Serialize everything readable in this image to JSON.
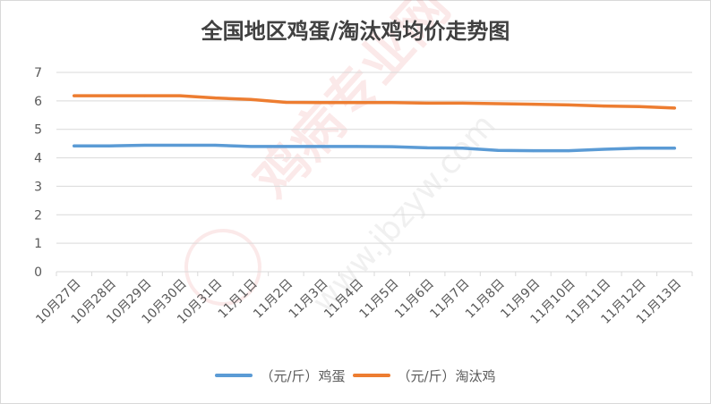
{
  "chart_data": {
    "type": "line",
    "title": "全国地区鸡蛋/淘汰鸡均价走势图",
    "xlabel": "",
    "ylabel": "",
    "ylim": [
      0,
      7
    ],
    "yticks": [
      "0",
      "1",
      "2",
      "3",
      "4",
      "5",
      "6",
      "7"
    ],
    "grid": true,
    "legend_position": "bottom",
    "categories": [
      "10月27日",
      "10月28日",
      "10月29日",
      "10月30日",
      "10月31日",
      "11月1日",
      "11月2日",
      "11月3日",
      "11月4日",
      "11月5日",
      "11月6日",
      "11月7日",
      "11月8日",
      "11月9日",
      "11月10日",
      "11月11日",
      "11月12日",
      "11月13日"
    ],
    "series": [
      {
        "name": "（元/斤）鸡蛋",
        "color": "#5b9bd5",
        "values": [
          4.42,
          4.42,
          4.44,
          4.44,
          4.44,
          4.4,
          4.4,
          4.4,
          4.4,
          4.39,
          4.35,
          4.34,
          4.26,
          4.25,
          4.25,
          4.3,
          4.34,
          4.34
        ]
      },
      {
        "name": "（元/斤）淘汰鸡",
        "color": "#ed7d31",
        "values": [
          6.18,
          6.18,
          6.18,
          6.18,
          6.1,
          6.05,
          5.95,
          5.94,
          5.94,
          5.94,
          5.92,
          5.92,
          5.9,
          5.88,
          5.86,
          5.82,
          5.8,
          5.75
        ]
      }
    ]
  },
  "watermark": {
    "main": "鸡病专业网",
    "url": "www.jbzyw.com"
  },
  "colors": {
    "grid": "#d9d9d9",
    "axis_text": "#595959",
    "title_text": "#404040"
  }
}
